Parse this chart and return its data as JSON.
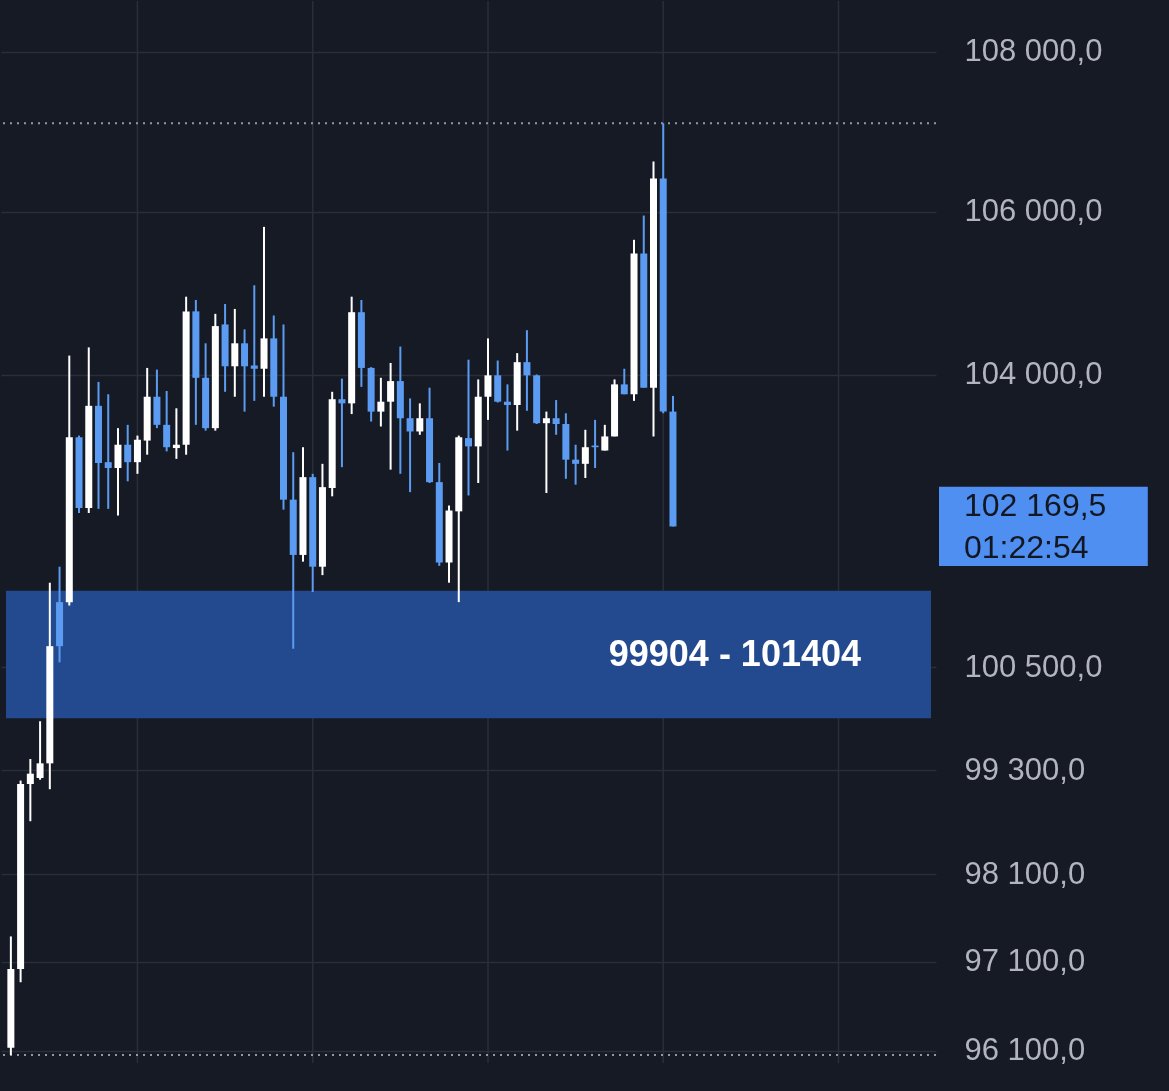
{
  "chart_data": {
    "type": "candlestick",
    "categories": [
      null,
      null,
      null,
      null,
      null,
      null,
      null,
      null,
      null,
      null,
      null,
      null,
      null,
      null,
      null,
      null,
      null,
      null,
      null,
      null,
      null,
      null,
      null,
      null,
      null,
      null,
      null,
      null,
      null,
      null,
      null,
      null,
      null,
      null,
      null,
      null,
      null,
      null,
      null,
      null,
      null,
      null,
      null,
      null,
      null,
      null,
      null,
      null,
      null,
      null,
      null,
      null,
      null,
      null,
      null,
      null,
      null,
      null,
      null,
      null,
      null,
      null,
      null,
      null,
      null,
      null,
      null,
      null,
      null,
      null,
      null,
      null,
      null,
      null,
      null,
      null,
      null,
      null,
      null,
      null,
      null,
      null,
      null,
      null,
      null,
      null,
      null,
      null,
      null,
      null,
      null,
      null,
      null,
      null,
      null
    ],
    "ohlc": [
      [
        96130,
        97390,
        96050,
        97020
      ],
      [
        97020,
        99180,
        96870,
        99140
      ],
      [
        99140,
        99430,
        98710,
        99260
      ],
      [
        99210,
        99870,
        99190,
        99380
      ],
      [
        99380,
        101500,
        99080,
        100750
      ],
      [
        101270,
        101690,
        100560,
        100750
      ],
      [
        101270,
        104230,
        101230,
        103240
      ],
      [
        103240,
        103260,
        102330,
        102390
      ],
      [
        102390,
        104330,
        102330,
        103620
      ],
      [
        103620,
        103910,
        102380,
        102930
      ],
      [
        102940,
        103760,
        102380,
        102870
      ],
      [
        102870,
        103350,
        102300,
        103150
      ],
      [
        103150,
        103390,
        102710,
        102940
      ],
      [
        102940,
        103260,
        102800,
        103210
      ],
      [
        103200,
        104080,
        103030,
        103730
      ],
      [
        103730,
        104060,
        103350,
        103390
      ],
      [
        103390,
        103800,
        103070,
        103120
      ],
      [
        103110,
        103590,
        102980,
        103150
      ],
      [
        103150,
        104950,
        103030,
        104770
      ],
      [
        104770,
        104910,
        103390,
        103960
      ],
      [
        103960,
        104380,
        103320,
        103350
      ],
      [
        103350,
        104740,
        103320,
        104590
      ],
      [
        104610,
        104860,
        103790,
        104100
      ],
      [
        104100,
        104800,
        103730,
        104380
      ],
      [
        104380,
        104550,
        103550,
        104100
      ],
      [
        104110,
        105090,
        103680,
        104070
      ],
      [
        104070,
        105810,
        103730,
        104440
      ],
      [
        104440,
        104720,
        103610,
        103730
      ],
      [
        103730,
        104610,
        102370,
        102490
      ],
      [
        102490,
        103060,
        100720,
        101830
      ],
      [
        101830,
        103120,
        101750,
        102760
      ],
      [
        102760,
        102800,
        101390,
        101690
      ],
      [
        101690,
        102920,
        101590,
        102640
      ],
      [
        102630,
        103790,
        102530,
        103700
      ],
      [
        103700,
        103950,
        102880,
        103650
      ],
      [
        103650,
        104950,
        103520,
        104760
      ],
      [
        104760,
        104910,
        103850,
        104080
      ],
      [
        104080,
        104090,
        103430,
        103550
      ],
      [
        103550,
        103960,
        103370,
        103670
      ],
      [
        103670,
        104140,
        102850,
        103920
      ],
      [
        103920,
        104340,
        102800,
        103470
      ],
      [
        103470,
        103710,
        102580,
        103310
      ],
      [
        103310,
        103650,
        103270,
        103470
      ],
      [
        103470,
        103840,
        102690,
        102700
      ],
      [
        102700,
        102930,
        101700,
        101740
      ],
      [
        101740,
        102420,
        101500,
        102360
      ],
      [
        102350,
        103260,
        101270,
        103240
      ],
      [
        103230,
        104180,
        102540,
        103130
      ],
      [
        103130,
        103940,
        102690,
        103730
      ],
      [
        103730,
        104440,
        103450,
        103990
      ],
      [
        103990,
        104170,
        103660,
        103670
      ],
      [
        103670,
        103880,
        103080,
        103630
      ],
      [
        103630,
        104260,
        103320,
        104150
      ],
      [
        104150,
        104540,
        103560,
        103990
      ],
      [
        103990,
        104000,
        103400,
        103410
      ],
      [
        103410,
        103550,
        102570,
        103470
      ],
      [
        103470,
        103690,
        103270,
        103400
      ],
      [
        103400,
        103530,
        102740,
        102970
      ],
      [
        102970,
        103150,
        102670,
        102920
      ],
      [
        102920,
        103330,
        102750,
        103120
      ],
      [
        103140,
        103450,
        102870,
        103120
      ],
      [
        103080,
        103390,
        103080,
        103250
      ],
      [
        103250,
        103940,
        103250,
        103880
      ],
      [
        103880,
        104070,
        103760,
        103760
      ],
      [
        103760,
        105650,
        103680,
        105480
      ],
      [
        105480,
        105950,
        103840,
        103840
      ],
      [
        103840,
        106620,
        103250,
        106410
      ],
      [
        106410,
        107100,
        103530,
        103550
      ],
      [
        103550,
        103740,
        102169.5,
        102169.5
      ],
      null,
      null,
      null,
      null,
      null,
      null,
      null,
      null,
      null,
      null,
      null,
      null,
      null,
      null,
      null,
      null,
      null,
      null,
      null,
      null,
      null,
      null,
      null,
      null,
      null,
      null
    ],
    "colors": [
      "#ffffff",
      "#ffffff",
      "#ffffff",
      "#ffffff",
      "#ffffff",
      "#5b9cf2",
      "#ffffff",
      "#5b9cf2",
      "#ffffff",
      "#5b9cf2",
      "#5b9cf2",
      "#ffffff",
      "#5b9cf2",
      "#ffffff",
      "#ffffff",
      "#5b9cf2",
      "#5b9cf2",
      "#ffffff",
      "#ffffff",
      "#5b9cf2",
      "#5b9cf2",
      "#ffffff",
      "#5b9cf2",
      "#ffffff",
      "#5b9cf2",
      "#5b9cf2",
      "#ffffff",
      "#5b9cf2",
      "#5b9cf2",
      "#5b9cf2",
      "#ffffff",
      "#5b9cf2",
      "#ffffff",
      "#ffffff",
      "#5b9cf2",
      "#ffffff",
      "#5b9cf2",
      "#5b9cf2",
      "#ffffff",
      "#ffffff",
      "#5b9cf2",
      "#5b9cf2",
      "#ffffff",
      "#5b9cf2",
      "#5b9cf2",
      "#ffffff",
      "#ffffff",
      "#5b9cf2",
      "#ffffff",
      "#ffffff",
      "#5b9cf2",
      "#5b9cf2",
      "#ffffff",
      "#5b9cf2",
      "#5b9cf2",
      "#ffffff",
      "#5b9cf2",
      "#5b9cf2",
      "#5b9cf2",
      "#ffffff",
      "#5b9cf2",
      "#ffffff",
      "#ffffff",
      "#5b9cf2",
      "#ffffff",
      "#5b9cf2",
      "#ffffff",
      "#5b9cf2",
      "#5b9cf2",
      null,
      null,
      null,
      null,
      null,
      null,
      null,
      null,
      null,
      null,
      null,
      null,
      null,
      null,
      null,
      null,
      null,
      null,
      null,
      null,
      null,
      null,
      null,
      null,
      null,
      null
    ],
    "ylim": [
      95960,
      108640
    ],
    "log": true,
    "yticks": [
      {
        "value": 96100,
        "label": "96 100,0"
      },
      {
        "value": 97100,
        "label": "97 100,0"
      },
      {
        "value": 98100,
        "label": "98 100,0"
      },
      {
        "value": 99300,
        "label": "99 300,0"
      },
      {
        "value": 100500,
        "label": "100 500,0"
      },
      {
        "value": 104000,
        "label": "104 000,0"
      },
      {
        "value": 106000,
        "label": "106 000,0"
      },
      {
        "value": 108000,
        "label": "108 000,0"
      }
    ],
    "tick_labels": "y",
    "grid": true,
    "bands": [
      {
        "axis": "y",
        "from": 99904,
        "to": 101404,
        "label": "99904 - 101404",
        "color": "#234a8e"
      }
    ],
    "ref_lines": [
      {
        "axis": "y",
        "value": 107100,
        "line_style": "dotted",
        "color": "#9598a1"
      },
      {
        "axis": "y",
        "value": 96050,
        "line_style": "dotted",
        "color": "#9598a1"
      }
    ],
    "annotations": [
      "102 169,5",
      "01:22:54"
    ]
  }
}
